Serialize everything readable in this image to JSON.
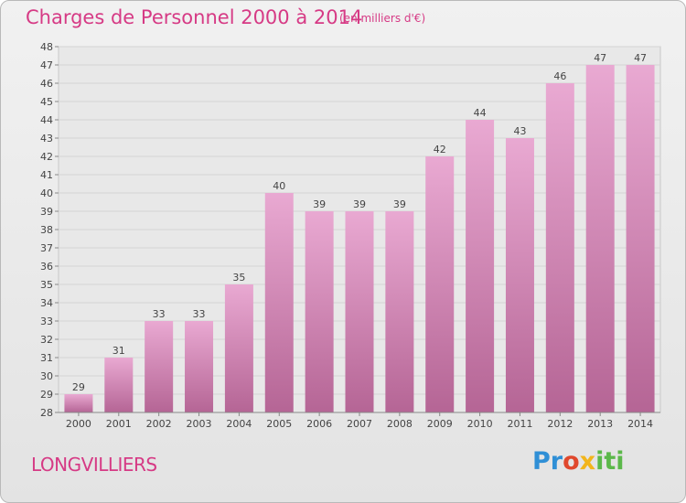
{
  "title": "Charges de Personnel 2000 à 2014",
  "subtitle": "(en milliers d'€)",
  "commune": "LONGVILLIERS",
  "logo": {
    "p": "Pr",
    "o": "o",
    "x": "x",
    "i": "iti"
  },
  "colors": {
    "accent": "#d63a85",
    "bar_top": "#e9a9d2",
    "bar_bottom": "#b56595"
  },
  "chart_data": {
    "type": "bar",
    "title": "Charges de Personnel 2000 à 2014",
    "subtitle": "(en milliers d'€)",
    "xlabel": "",
    "ylabel": "",
    "categories": [
      "2000",
      "2001",
      "2002",
      "2003",
      "2004",
      "2005",
      "2006",
      "2007",
      "2008",
      "2009",
      "2010",
      "2011",
      "2012",
      "2013",
      "2014"
    ],
    "values": [
      29,
      31,
      33,
      33,
      35,
      40,
      39,
      39,
      39,
      42,
      44,
      43,
      46,
      47,
      47
    ],
    "ylim": [
      28,
      48
    ],
    "yticks": [
      28,
      29,
      30,
      31,
      32,
      33,
      34,
      35,
      36,
      37,
      38,
      39,
      40,
      41,
      42,
      43,
      44,
      45,
      46,
      47,
      48
    ],
    "grid": true
  }
}
